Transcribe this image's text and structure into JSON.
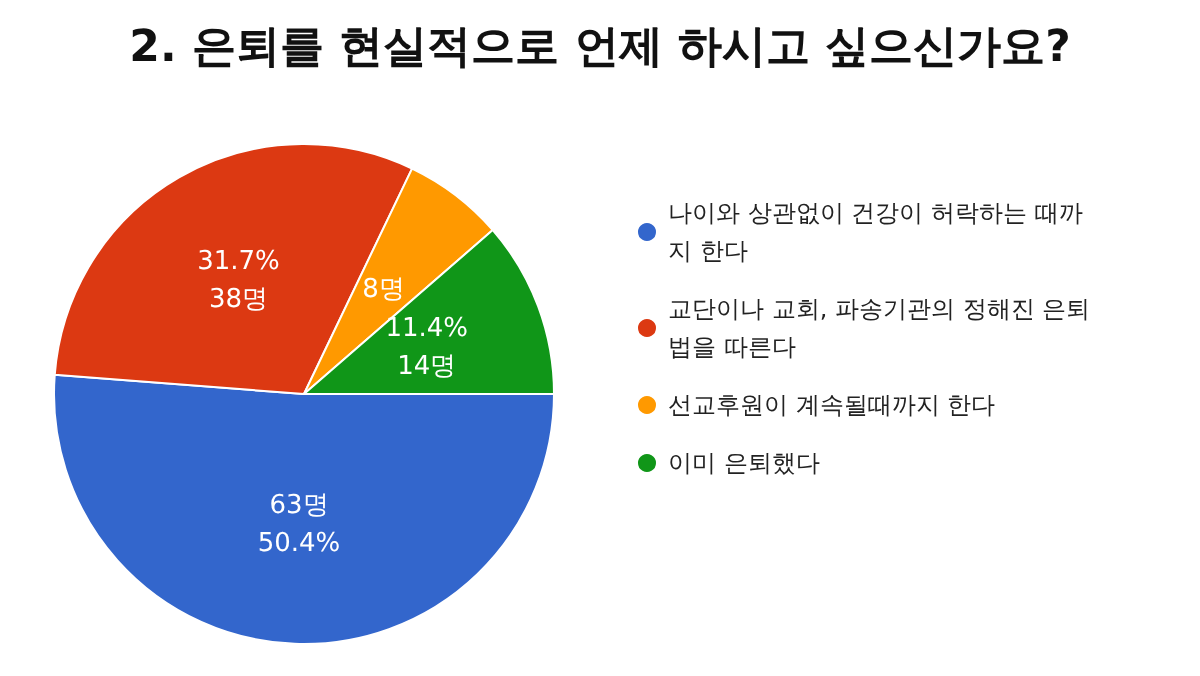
{
  "chart_data": {
    "type": "pie",
    "title": "2. 은퇴를 현실적으로 언제 하시고 싶으신가요?",
    "categories": [
      "나이와 상관없이 건강이 허락하는 때까지 한다",
      "교단이나 교회, 파송기관의 정해진 은퇴법을 따른다",
      "선교후원이 계속될때까지 한다",
      "이미 은퇴했다"
    ],
    "values": [
      63,
      38,
      8,
      14
    ],
    "value_labels": [
      "63명\n50.4%",
      "31.7%\n38명",
      "8명",
      "11.4%\n14명"
    ],
    "colors": [
      "#3366cc",
      "#dc3912",
      "#ff9900",
      "#109618"
    ],
    "legend": "right"
  }
}
